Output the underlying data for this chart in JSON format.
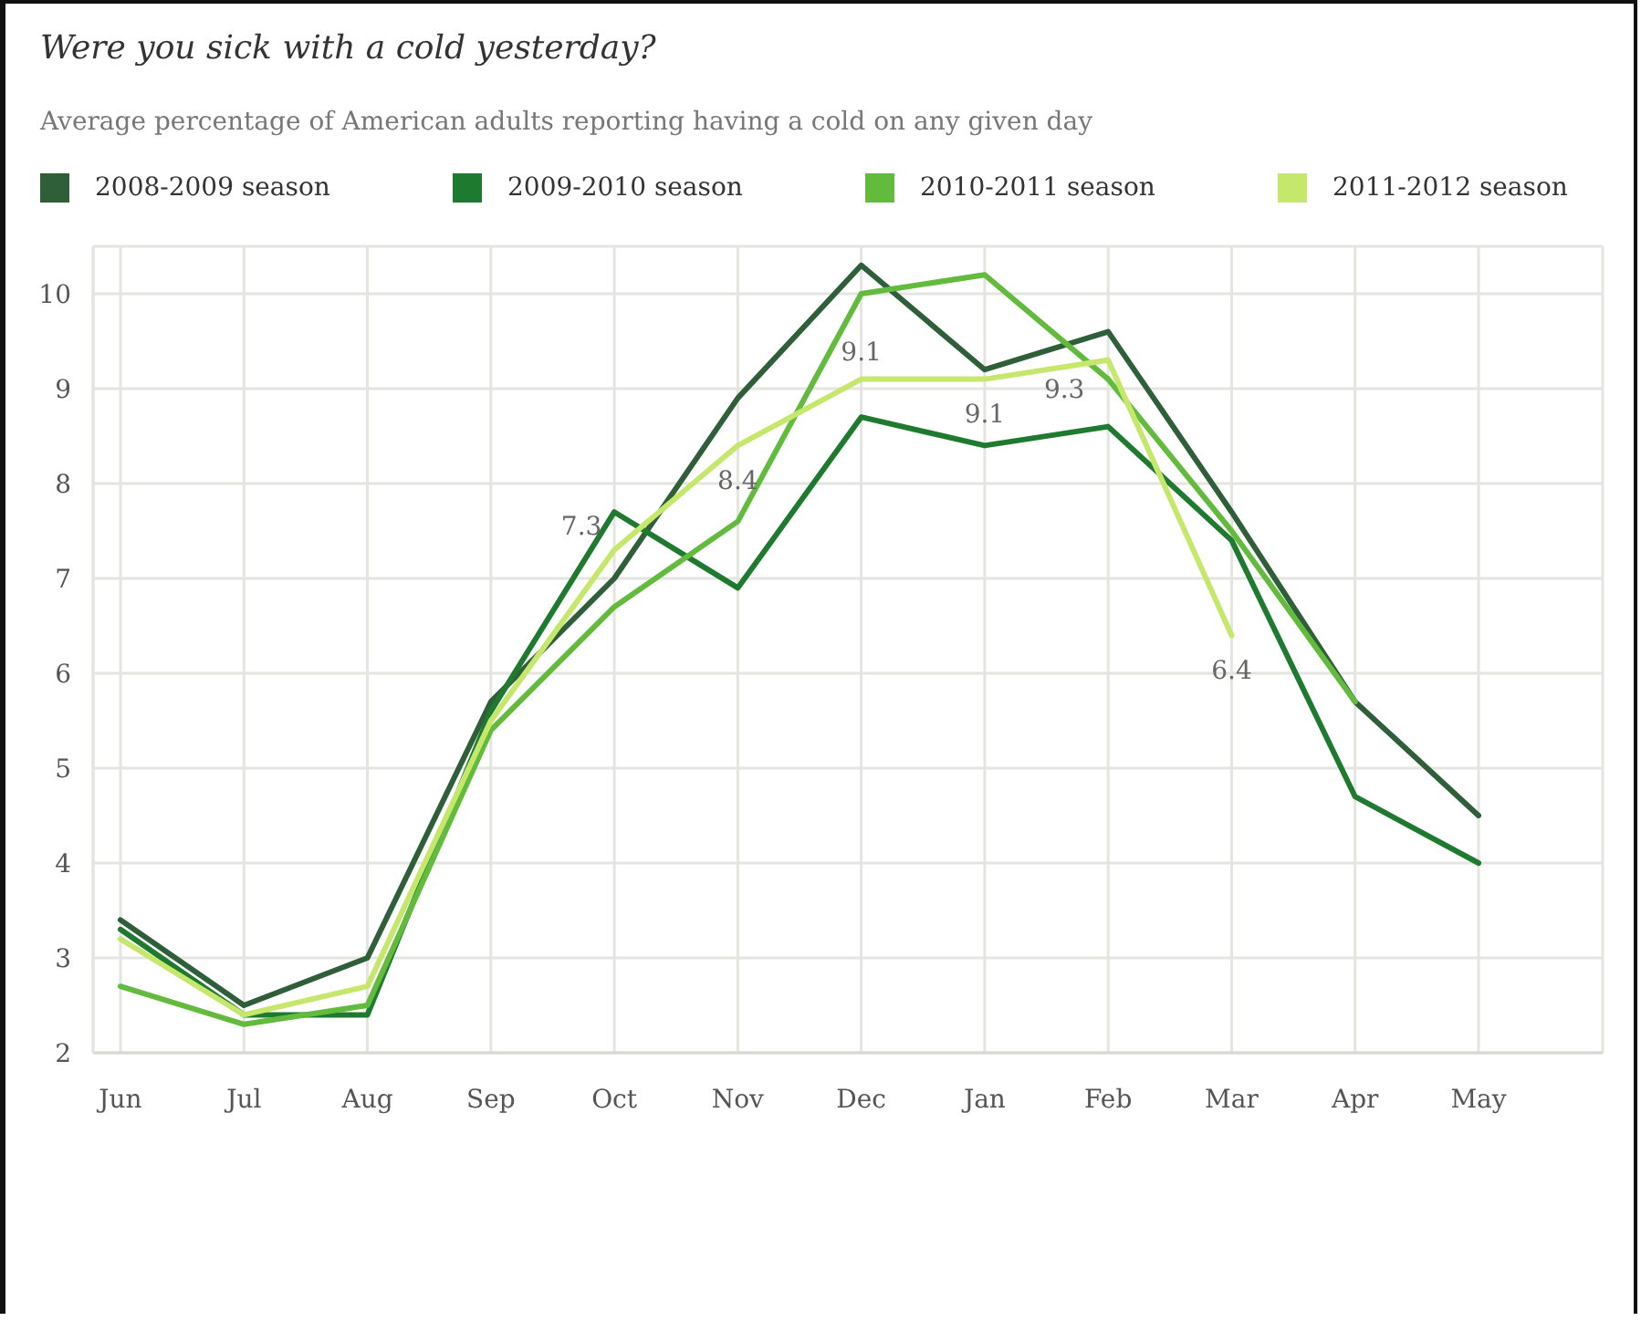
{
  "chart_data": {
    "type": "line",
    "title": "Were you sick with a cold yesterday?",
    "subtitle": "Average percentage of American adults reporting having a cold on any given day",
    "categories": [
      "Jun",
      "Jul",
      "Aug",
      "Sep",
      "Oct",
      "Nov",
      "Dec",
      "Jan",
      "Feb",
      "Mar",
      "Apr",
      "May"
    ],
    "series": [
      {
        "name": "2008-2009 season",
        "color": "#2f5f38",
        "values": [
          3.4,
          2.5,
          3.0,
          5.7,
          7.0,
          8.9,
          10.3,
          9.2,
          9.6,
          7.7,
          5.7,
          4.5
        ]
      },
      {
        "name": "2009-2010 season",
        "color": "#1e7a2e",
        "values": [
          3.3,
          2.4,
          2.4,
          5.6,
          7.7,
          6.9,
          8.7,
          8.4,
          8.6,
          7.4,
          4.7,
          4.0
        ]
      },
      {
        "name": "2010-2011 season",
        "color": "#62bb3c",
        "values": [
          2.7,
          2.3,
          2.5,
          5.4,
          6.7,
          7.6,
          10.0,
          10.2,
          9.1,
          7.5,
          5.7,
          null
        ]
      },
      {
        "name": "2011-2012 season",
        "color": "#c5e86c",
        "values": [
          3.2,
          2.4,
          2.7,
          5.5,
          7.3,
          8.4,
          9.1,
          9.1,
          9.3,
          6.4,
          null,
          null
        ],
        "value_labels": [
          null,
          null,
          null,
          null,
          "7.3",
          "8.4",
          "9.1",
          "9.1",
          "9.3",
          "6.4",
          null,
          null
        ]
      }
    ],
    "ylim": [
      2,
      10.5
    ],
    "yticks": [
      2,
      3,
      4,
      5,
      6,
      7,
      8,
      9,
      10
    ],
    "grid": true,
    "legend": "top",
    "marker": "none",
    "line_style": "solid"
  }
}
